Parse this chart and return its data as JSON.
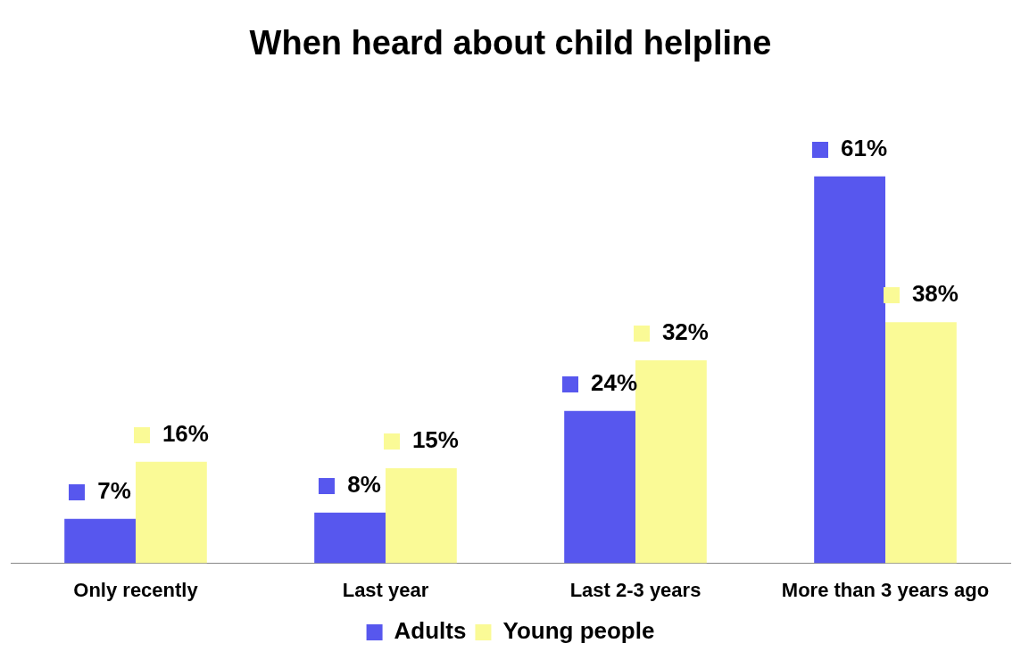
{
  "chart_data": {
    "type": "bar",
    "title": "When heard about child helpline",
    "categories": [
      "Only recently",
      "Last year",
      "Last 2-3 years",
      "More than 3 years ago"
    ],
    "series": [
      {
        "name": "Adults",
        "color": "#5757ee",
        "values": [
          7,
          8,
          24,
          61
        ],
        "value_labels": [
          "7%",
          "8%",
          "24%",
          "61%"
        ]
      },
      {
        "name": "Young people",
        "color": "#fafa96",
        "values": [
          16,
          15,
          32,
          38
        ],
        "value_labels": [
          "16%",
          "15%",
          "32%",
          "38%"
        ]
      }
    ],
    "legend": "bottom",
    "grid": false
  }
}
